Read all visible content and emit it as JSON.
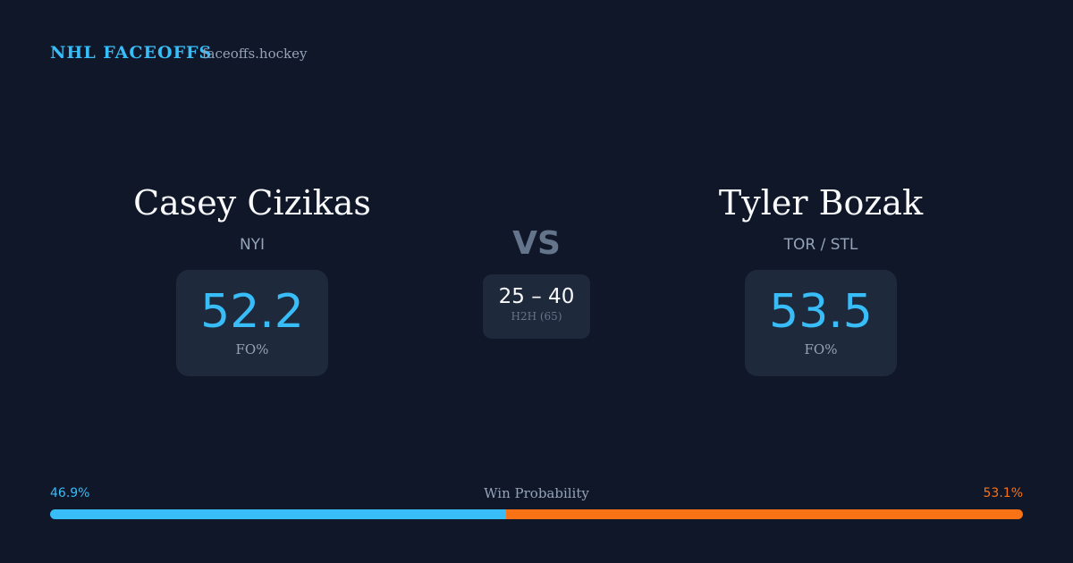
{
  "header": {
    "brand": "NHL FACEOFFS",
    "site": "faceoffs.hockey"
  },
  "players": [
    {
      "name": "Casey Cizikas",
      "team": "NYI",
      "fo_pct": 52.2,
      "fo_label": "FO%"
    },
    {
      "name": "Tyler Bozak",
      "team": "TOR / STL",
      "fo_pct": 53.5,
      "fo_label": "FO%"
    }
  ],
  "versus": "VS",
  "h2h": {
    "score": "25 – 40",
    "label": "H2H (65)"
  },
  "win_probability": {
    "title": "Win Probability",
    "left": {
      "value": 46.9,
      "label": "46.9%",
      "color": "#38bdf8"
    },
    "right": {
      "value": 53.1,
      "label": "53.1%",
      "color": "#f97316"
    }
  }
}
